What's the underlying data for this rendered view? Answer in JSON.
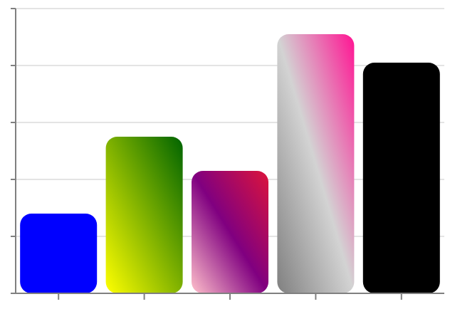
{
  "chart_data": {
    "type": "bar",
    "categories": [
      "",
      "",
      "",
      "",
      ""
    ],
    "values": [
      14,
      27.5,
      21.5,
      45.5,
      40.5
    ],
    "ylim": [
      0,
      50
    ],
    "yticks": [
      0,
      10,
      20,
      30,
      40,
      50
    ],
    "grid": true,
    "legend": "none",
    "bar_fills": [
      {
        "kind": "solid",
        "colors": [
          "#0000ff"
        ]
      },
      {
        "kind": "gradient",
        "colors": [
          "#ffff00",
          "#006400"
        ]
      },
      {
        "kind": "gradient",
        "colors": [
          "#ffc0cb",
          "#800080",
          "#dc143c"
        ]
      },
      {
        "kind": "gradient",
        "colors": [
          "#808080",
          "#d3d3d3",
          "#ff1493"
        ]
      },
      {
        "kind": "solid",
        "colors": [
          "#000000"
        ]
      }
    ],
    "colors": {
      "axis": "#808080",
      "grid": "#d3d3d3",
      "background": "#ffffff"
    }
  }
}
